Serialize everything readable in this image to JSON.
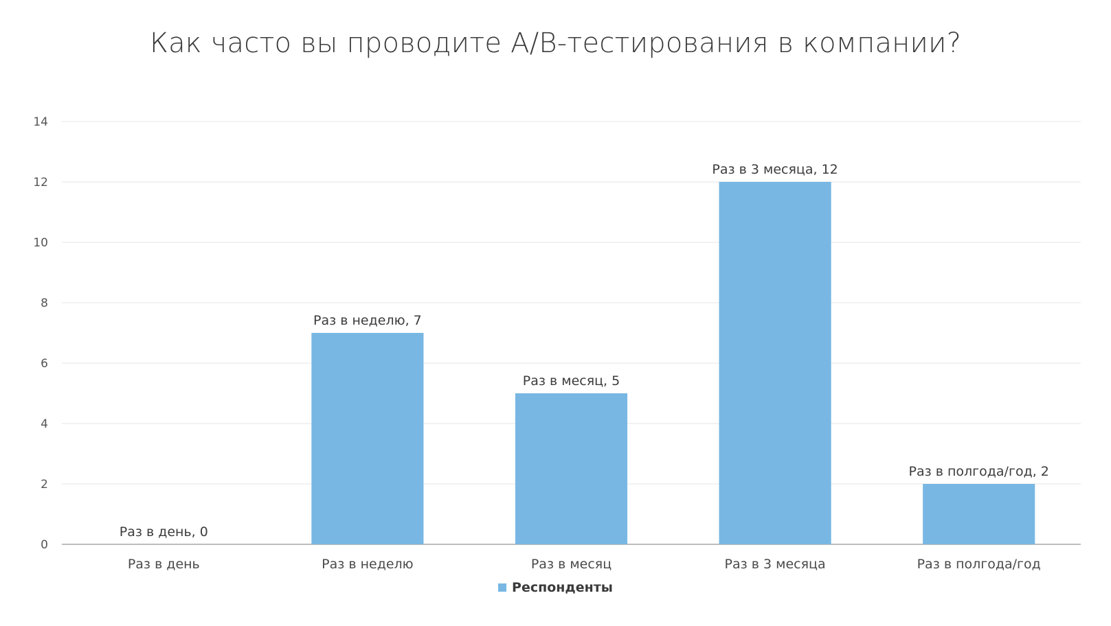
{
  "chart_data": {
    "type": "bar",
    "title": "Как часто вы проводите А/В-тестирования в компании?",
    "xlabel": "",
    "ylabel": "",
    "categories": [
      "Раз в день",
      "Раз в неделю",
      "Раз в месяц",
      "Раз в 3 месяца",
      "Раз в полгода/год"
    ],
    "series": [
      {
        "name": "Респонденты",
        "values": [
          0,
          7,
          5,
          12,
          2
        ],
        "color": "#78b7e3"
      }
    ],
    "data_labels": [
      "Раз в день, 0",
      "Раз в неделю, 7",
      "Раз в месяц, 5",
      "Раз в 3 месяца, 12",
      "Раз в полгода/год, 2"
    ],
    "ylim": [
      0,
      14
    ],
    "yticks": [
      0,
      2,
      4,
      6,
      8,
      10,
      12,
      14
    ],
    "grid": true,
    "legend_position": "bottom"
  }
}
